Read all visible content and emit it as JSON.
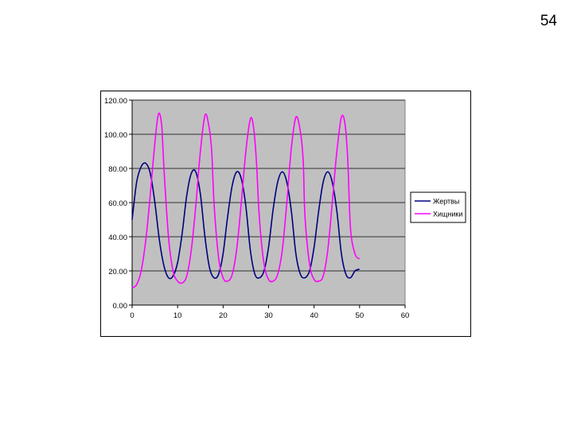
{
  "page": {
    "number": "54"
  },
  "chart_data": {
    "type": "line",
    "title": "",
    "xlabel": "",
    "ylabel": "",
    "xlim": [
      0,
      60
    ],
    "ylim": [
      0,
      120
    ],
    "x_ticks": [
      "0",
      "10",
      "20",
      "30",
      "40",
      "50",
      "60"
    ],
    "y_ticks": [
      "0.00",
      "20.00",
      "40.00",
      "60.00",
      "80.00",
      "100.00",
      "120.00"
    ],
    "grid": "horizontal",
    "plot_background": "#c0c0c0",
    "legend_position": "right",
    "series": [
      {
        "name": "Жертвы",
        "color": "#000080",
        "x": [
          0,
          1,
          2,
          3,
          4,
          5,
          6,
          7,
          8,
          9,
          10,
          11,
          12,
          13,
          14,
          15,
          16,
          17,
          18,
          19,
          20,
          21,
          22,
          23,
          24,
          25,
          26,
          27,
          28,
          29,
          30,
          31,
          32,
          33,
          34,
          35,
          36,
          37,
          38,
          39,
          40,
          41,
          42,
          43,
          44,
          45,
          46,
          47,
          48,
          49,
          50
        ],
        "values": [
          50,
          72,
          81,
          83,
          77,
          60,
          38,
          23,
          16,
          17,
          25,
          42,
          64,
          77,
          78,
          65,
          40,
          22,
          16,
          18,
          30,
          52,
          70,
          78,
          74,
          58,
          32,
          18,
          16,
          20,
          34,
          56,
          72,
          78,
          72,
          55,
          30,
          18,
          16,
          20,
          34,
          55,
          72,
          78,
          72,
          55,
          30,
          18,
          16,
          20,
          21
        ]
      },
      {
        "name": "Хищники",
        "color": "#ff00ff",
        "x": [
          0,
          1,
          2,
          3,
          4,
          5,
          5.8,
          6.5,
          7,
          8,
          9,
          10,
          11,
          12,
          13,
          14,
          15,
          16,
          16.8,
          17.5,
          18,
          19,
          20,
          21,
          22,
          23,
          24,
          25,
          26,
          26.7,
          27.3,
          28,
          29,
          30,
          31,
          32,
          33,
          34,
          35,
          36,
          36.9,
          37.6,
          38,
          39,
          40,
          41,
          42,
          43,
          44,
          45,
          46,
          46.8,
          47.4,
          48,
          49,
          50
        ],
        "values": [
          10,
          12,
          20,
          38,
          65,
          95,
          112,
          105,
          80,
          40,
          20,
          14,
          13,
          17,
          32,
          58,
          90,
          111,
          106,
          90,
          60,
          28,
          16,
          14,
          18,
          33,
          60,
          90,
          109,
          104,
          85,
          50,
          24,
          15,
          14,
          18,
          32,
          60,
          92,
          110,
          103,
          85,
          52,
          24,
          15,
          14,
          17,
          32,
          60,
          90,
          110,
          106,
          85,
          45,
          30,
          27
        ]
      }
    ]
  }
}
